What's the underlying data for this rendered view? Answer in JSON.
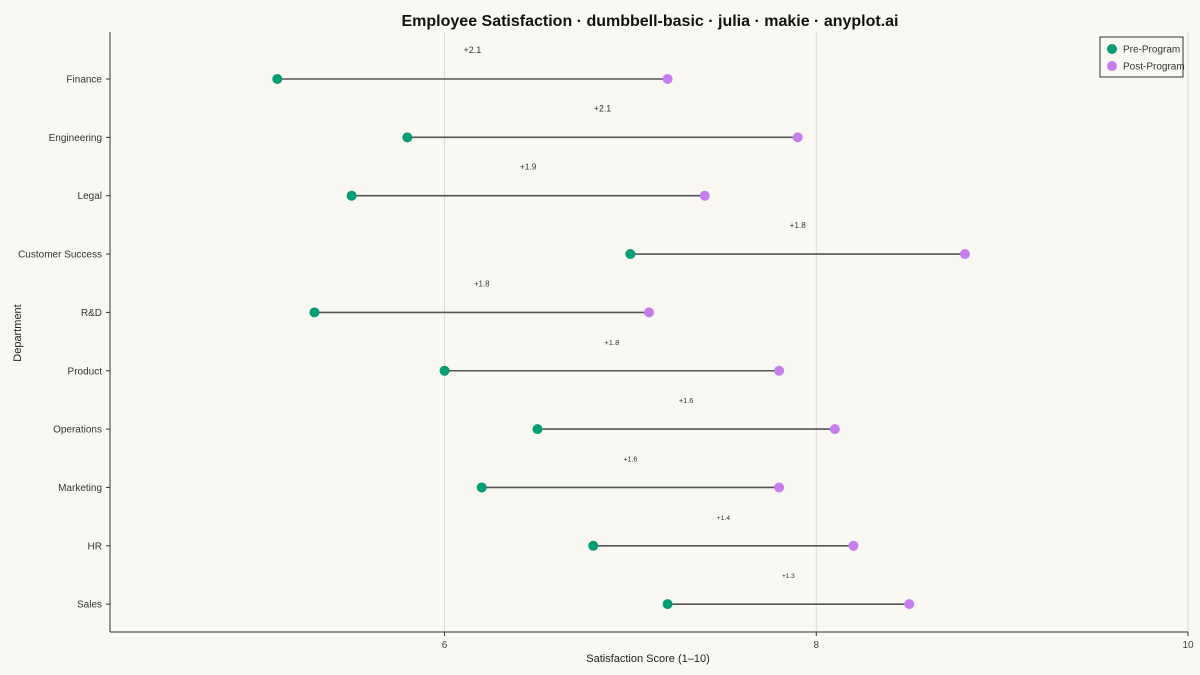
{
  "chart_data": {
    "type": "dumbbell",
    "title": "Employee Satisfaction · dumbbell-basic · julia · makie · anyplot.ai",
    "xlabel": "Satisfaction Score (1–10)",
    "ylabel": "Department",
    "xlim": [
      4.2,
      10
    ],
    "xticks": [
      6,
      8,
      10
    ],
    "grid": "vertical",
    "legend_position": "top-right",
    "series": [
      {
        "name": "Pre-Program",
        "color": "#009E73"
      },
      {
        "name": "Post-Program",
        "color": "#C77CF0"
      }
    ],
    "categories": [
      "Finance",
      "Engineering",
      "Legal",
      "Customer Success",
      "R&D",
      "Product",
      "Operations",
      "Marketing",
      "HR",
      "Sales"
    ],
    "pre": [
      5.1,
      5.8,
      5.5,
      7.0,
      5.3,
      6.0,
      6.5,
      6.2,
      6.8,
      7.2
    ],
    "post": [
      7.2,
      7.9,
      7.4,
      8.8,
      7.1,
      7.8,
      8.1,
      7.8,
      8.2,
      8.5
    ],
    "diff_labels": [
      "+2.1",
      "+2.1",
      "+1.9",
      "+1.8",
      "+1.8",
      "+1.8",
      "+1.6",
      "+1.6",
      "+1.4",
      "+1.3"
    ],
    "connector_color": "#555555"
  }
}
